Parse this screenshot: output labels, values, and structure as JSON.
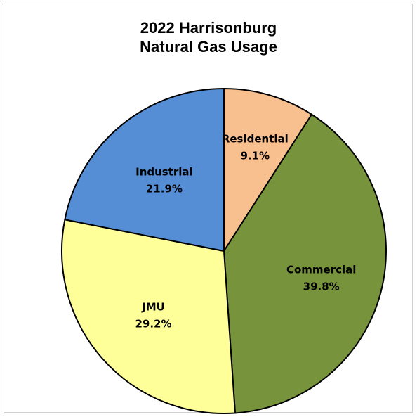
{
  "chart_data": {
    "type": "pie",
    "title_lines": [
      "2022 Harrisonburg",
      "Natural Gas Usage"
    ],
    "start_angle_deg": 0,
    "direction": "clockwise",
    "slices": [
      {
        "label": "Residential",
        "value": 9.1,
        "display": "9.1%",
        "color": "#F8C08F"
      },
      {
        "label": "Commercial",
        "value": 39.8,
        "display": "39.8%",
        "color": "#77933C"
      },
      {
        "label": "JMU",
        "value": 29.2,
        "display": "29.2%",
        "color": "#FFFF99"
      },
      {
        "label": "Industrial",
        "value": 21.9,
        "display": "21.9%",
        "color": "#558ED5"
      }
    ],
    "legend": "none"
  }
}
